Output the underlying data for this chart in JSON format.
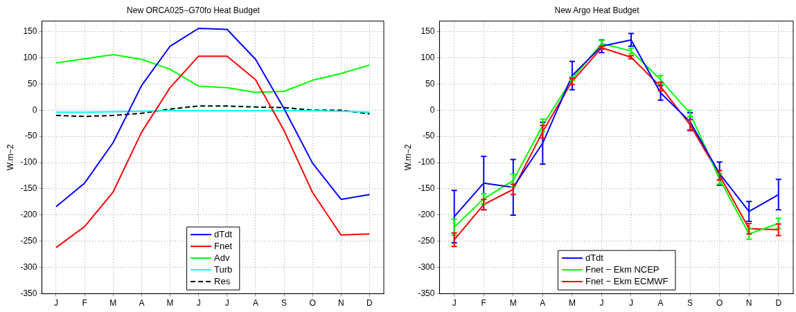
{
  "chart_data": [
    {
      "type": "line",
      "title": "New ORCA025−G70fo Heat Budget",
      "ylabel": "W.m−2",
      "categories": [
        "J",
        "F",
        "M",
        "A",
        "M",
        "J",
        "J",
        "A",
        "S",
        "O",
        "N",
        "D"
      ],
      "ylim": [
        -350,
        170
      ],
      "yticks": [
        -350,
        -300,
        -250,
        -200,
        -150,
        -100,
        -50,
        0,
        50,
        100,
        150
      ],
      "grid": true,
      "legend": "bottom",
      "marker": "none",
      "series": [
        {
          "name": "dTdt",
          "color": "#0000ff",
          "values": [
            -184,
            -139,
            -62,
            47,
            122,
            156,
            154,
            97,
            3,
            -101,
            -170,
            -161
          ]
        },
        {
          "name": "Fnet",
          "color": "#ff0000",
          "values": [
            -262,
            -222,
            -156,
            -42,
            43,
            103,
            103,
            58,
            -39,
            -157,
            -238,
            -236
          ]
        },
        {
          "name": "Adv",
          "color": "#00ff00",
          "values": [
            90,
            98,
            106,
            97,
            78,
            46,
            43,
            34,
            36,
            57,
            70,
            86
          ]
        },
        {
          "name": "Turb",
          "color": "#00ffff",
          "values": [
            -4,
            -4,
            -3,
            -2,
            -1,
            -1,
            -1,
            -1,
            -1,
            -1,
            -2,
            -4
          ]
        },
        {
          "name": "Res",
          "color": "#000000",
          "line_style": "dashed",
          "values": [
            -10,
            -12,
            -10,
            -6,
            2,
            8,
            8,
            6,
            5,
            0,
            0,
            -7
          ]
        }
      ]
    },
    {
      "type": "line",
      "title": "New Argo Heat Budget",
      "ylabel": "W.m−2",
      "categories": [
        "J",
        "F",
        "M",
        "A",
        "M",
        "J",
        "J",
        "A",
        "S",
        "O",
        "N",
        "D"
      ],
      "ylim": [
        -350,
        170
      ],
      "yticks": [
        -350,
        -300,
        -250,
        -200,
        -150,
        -100,
        -50,
        0,
        50,
        100,
        150
      ],
      "grid": true,
      "legend": "bottom",
      "marker": "none",
      "series": [
        {
          "name": "dTdt",
          "color": "#0000ff",
          "values": [
            -203,
            -139,
            -147,
            -63,
            66,
            122,
            134,
            33,
            -22,
            -121,
            -193,
            -161
          ],
          "errors": [
            50,
            51,
            53,
            40,
            27,
            12,
            12,
            14,
            17,
            22,
            19,
            29
          ]
        },
        {
          "name": "Fnet − Ekm NCEP",
          "color": "#00ff00",
          "values": [
            -223,
            -169,
            -134,
            -29,
            60,
            127,
            113,
            58,
            -6,
            -131,
            -236,
            -216
          ],
          "errors": [
            15,
            10,
            12,
            12,
            3,
            6,
            5,
            8,
            6,
            10,
            10,
            10
          ]
        },
        {
          "name": "Fnet − Ekm ECMWF",
          "color": "#ff0000",
          "values": [
            -247,
            -180,
            -151,
            -41,
            55,
            119,
            101,
            45,
            -28,
            -124,
            -226,
            -228
          ],
          "errors": [
            13,
            10,
            10,
            12,
            6,
            3,
            3,
            8,
            10,
            9,
            10,
            11
          ]
        }
      ]
    }
  ]
}
